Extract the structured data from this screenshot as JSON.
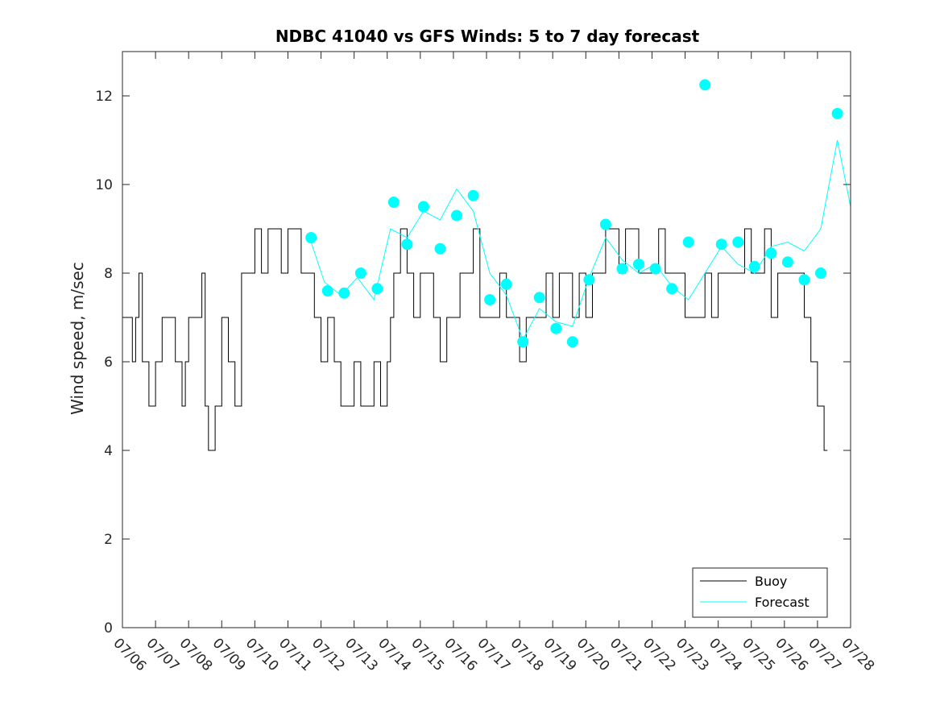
{
  "chart_data": {
    "type": "line",
    "title": "NDBC 41040 vs GFS Winds: 5 to 7 day forecast",
    "xlabel": "",
    "ylabel": "Wind speed, m/sec",
    "x_range_days": [
      6,
      28
    ],
    "ylim": [
      0,
      13
    ],
    "y_ticks": [
      "0",
      "2",
      "4",
      "6",
      "8",
      "10",
      "12"
    ],
    "x_ticks": [
      "07/06",
      "07/07",
      "07/08",
      "07/09",
      "07/10",
      "07/11",
      "07/12",
      "07/13",
      "07/14",
      "07/15",
      "07/16",
      "07/17",
      "07/18",
      "07/19",
      "07/20",
      "07/21",
      "07/22",
      "07/23",
      "07/24",
      "07/25",
      "07/26",
      "07/27",
      "07/28"
    ],
    "legend": {
      "position": "bottom-right",
      "entries": [
        "Buoy",
        "Forecast"
      ]
    },
    "colors": {
      "buoy": "#000000",
      "forecast": "#00ffff",
      "axis": "#262626"
    },
    "series": [
      {
        "name": "Buoy",
        "x": [
          6.0,
          6.3,
          6.4,
          6.5,
          6.6,
          6.8,
          7.0,
          7.2,
          7.4,
          7.6,
          7.8,
          7.9,
          8.0,
          8.2,
          8.4,
          8.5,
          8.6,
          8.8,
          9.0,
          9.2,
          9.4,
          9.6,
          9.8,
          10.0,
          10.2,
          10.4,
          10.6,
          10.8,
          11.0,
          11.2,
          11.4,
          11.6,
          11.8,
          12.0,
          12.2,
          12.4,
          12.6,
          12.8,
          13.0,
          13.2,
          13.4,
          13.6,
          13.8,
          14.0,
          14.1,
          14.2,
          14.4,
          14.6,
          14.8,
          15.0,
          15.2,
          15.4,
          15.6,
          15.8,
          16.0,
          16.2,
          16.4,
          16.6,
          16.8,
          17.0,
          17.2,
          17.4,
          17.6,
          17.8,
          18.0,
          18.2,
          18.4,
          18.6,
          18.8,
          19.0,
          19.2,
          19.4,
          19.6,
          19.8,
          20.0,
          20.2,
          20.4,
          20.6,
          20.8,
          21.0,
          21.2,
          21.4,
          21.6,
          21.8,
          22.0,
          22.2,
          22.4,
          22.6,
          22.8,
          23.0,
          23.2,
          23.4,
          23.6,
          23.8,
          24.0,
          24.2,
          24.4,
          24.6,
          24.8,
          25.0,
          25.2,
          25.4,
          25.6,
          25.8,
          26.0,
          26.2,
          26.4,
          26.6,
          26.8,
          27.0,
          27.2
        ],
        "values": [
          7,
          6,
          7,
          8,
          6,
          5,
          6,
          7,
          7,
          6,
          5,
          6,
          7,
          7,
          8,
          5,
          4,
          5,
          7,
          6,
          5,
          8,
          8,
          9,
          8,
          9,
          9,
          8,
          9,
          9,
          8,
          8,
          7,
          6,
          7,
          6,
          5,
          5,
          6,
          5,
          5,
          6,
          5,
          6,
          7,
          8,
          9,
          8,
          7,
          8,
          8,
          7,
          6,
          7,
          7,
          8,
          8,
          9,
          7,
          7,
          7,
          8,
          7,
          7,
          6,
          7,
          7,
          7,
          8,
          7,
          8,
          8,
          7,
          8,
          7,
          8,
          8,
          9,
          9,
          8,
          9,
          9,
          8,
          8,
          8,
          9,
          8,
          8,
          8,
          7,
          7,
          7,
          8,
          7,
          8,
          8,
          8,
          8,
          9,
          8,
          8,
          9,
          7,
          8,
          8,
          8,
          8,
          7,
          6,
          5,
          4
        ]
      },
      {
        "name": "Forecast",
        "x": [
          11.7,
          12.1,
          12.6,
          13.1,
          13.6,
          14.1,
          14.6,
          15.1,
          15.6,
          16.1,
          16.6,
          17.1,
          17.6,
          18.1,
          18.6,
          19.1,
          19.6,
          20.1,
          20.6,
          21.1,
          21.6,
          22.1,
          22.6,
          23.1,
          23.6,
          24.1,
          24.6,
          25.1,
          25.6,
          26.1,
          26.6,
          27.1,
          27.6,
          28.0
        ],
        "values": [
          8.7,
          7.8,
          7.5,
          7.9,
          7.4,
          9.0,
          8.8,
          9.4,
          9.2,
          9.9,
          9.4,
          8.0,
          7.5,
          6.5,
          7.2,
          6.9,
          6.8,
          7.9,
          8.8,
          8.3,
          8.0,
          8.2,
          7.7,
          7.4,
          8.0,
          8.6,
          8.2,
          8.0,
          8.6,
          8.7,
          8.5,
          9.0,
          11.0,
          9.5
        ]
      }
    ],
    "forecast_markers": {
      "x": [
        11.7,
        12.2,
        12.7,
        13.2,
        13.7,
        14.2,
        14.6,
        15.1,
        15.6,
        16.1,
        16.6,
        17.1,
        17.6,
        18.1,
        18.6,
        19.1,
        19.6,
        20.1,
        20.6,
        21.1,
        21.6,
        22.1,
        22.6,
        23.1,
        23.6,
        24.1,
        24.6,
        25.1,
        25.6,
        26.1,
        26.6,
        27.1,
        27.6
      ],
      "values": [
        8.8,
        7.6,
        7.55,
        8.0,
        7.65,
        9.6,
        8.65,
        9.5,
        8.55,
        9.3,
        9.75,
        7.4,
        7.75,
        6.45,
        7.45,
        6.75,
        6.45,
        7.85,
        9.1,
        8.1,
        8.2,
        8.1,
        7.65,
        8.7,
        12.25,
        8.65,
        8.7,
        8.15,
        8.45,
        8.25,
        7.85,
        8.0,
        11.6
      ]
    }
  }
}
